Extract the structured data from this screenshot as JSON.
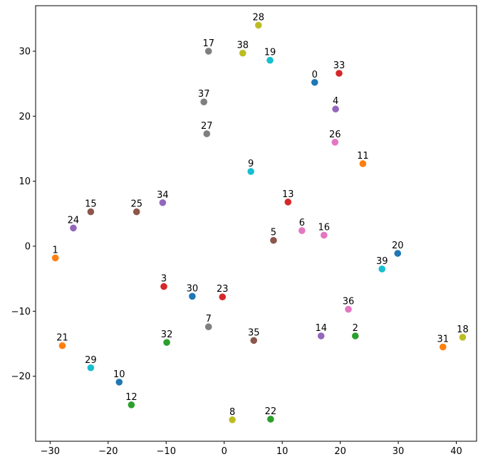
{
  "chart_data": {
    "type": "scatter",
    "title": "",
    "xlabel": "",
    "ylabel": "",
    "xlim": [
      -32.5,
      43.5
    ],
    "ylim": [
      -30.0,
      37.0
    ],
    "xticks": [
      -30,
      -20,
      -10,
      0,
      10,
      20,
      30,
      40
    ],
    "yticks": [
      -20,
      -10,
      0,
      10,
      20,
      30
    ],
    "grid": false,
    "legend": "none",
    "colors": [
      "#1f77b4",
      "#ff7f0e",
      "#2ca02c",
      "#d62728",
      "#9467bd",
      "#8c564b",
      "#e377c2",
      "#7f7f7f",
      "#bcbd22",
      "#17becf"
    ],
    "points": [
      {
        "label": "0",
        "x": 15.6,
        "y": 25.2
      },
      {
        "label": "1",
        "x": -29.1,
        "y": -1.8
      },
      {
        "label": "2",
        "x": 22.6,
        "y": -13.8
      },
      {
        "label": "3",
        "x": -10.4,
        "y": -6.2
      },
      {
        "label": "4",
        "x": 19.2,
        "y": 21.1
      },
      {
        "label": "5",
        "x": 8.5,
        "y": 0.9
      },
      {
        "label": "6",
        "x": 13.4,
        "y": 2.4
      },
      {
        "label": "7",
        "x": -2.7,
        "y": -12.4
      },
      {
        "label": "8",
        "x": 1.4,
        "y": -26.7
      },
      {
        "label": "9",
        "x": 4.6,
        "y": 11.5
      },
      {
        "label": "10",
        "x": -18.1,
        "y": -20.9
      },
      {
        "label": "11",
        "x": 23.9,
        "y": 12.7
      },
      {
        "label": "12",
        "x": -16.0,
        "y": -24.4
      },
      {
        "label": "13",
        "x": 11.0,
        "y": 6.8
      },
      {
        "label": "14",
        "x": 16.7,
        "y": -13.8
      },
      {
        "label": "15",
        "x": -23.0,
        "y": 5.3
      },
      {
        "label": "16",
        "x": 17.2,
        "y": 1.7
      },
      {
        "label": "17",
        "x": -2.7,
        "y": 30.0
      },
      {
        "label": "18",
        "x": 41.1,
        "y": -14.0
      },
      {
        "label": "19",
        "x": 7.9,
        "y": 28.6
      },
      {
        "label": "20",
        "x": 29.9,
        "y": -1.1
      },
      {
        "label": "21",
        "x": -27.9,
        "y": -15.3
      },
      {
        "label": "22",
        "x": 8.0,
        "y": -26.6
      },
      {
        "label": "23",
        "x": -0.3,
        "y": -7.8
      },
      {
        "label": "24",
        "x": -26.0,
        "y": 2.8
      },
      {
        "label": "25",
        "x": -15.1,
        "y": 5.3
      },
      {
        "label": "26",
        "x": 19.1,
        "y": 16.0
      },
      {
        "label": "27",
        "x": -3.0,
        "y": 17.3
      },
      {
        "label": "28",
        "x": 5.9,
        "y": 34.0
      },
      {
        "label": "29",
        "x": -23.0,
        "y": -18.7
      },
      {
        "label": "30",
        "x": -5.5,
        "y": -7.7
      },
      {
        "label": "31",
        "x": 37.7,
        "y": -15.5
      },
      {
        "label": "32",
        "x": -9.9,
        "y": -14.8
      },
      {
        "label": "33",
        "x": 19.8,
        "y": 26.6
      },
      {
        "label": "34",
        "x": -10.6,
        "y": 6.7
      },
      {
        "label": "35",
        "x": 5.1,
        "y": -14.5
      },
      {
        "label": "36",
        "x": 21.4,
        "y": -9.7
      },
      {
        "label": "37",
        "x": -3.5,
        "y": 22.2
      },
      {
        "label": "38",
        "x": 3.2,
        "y": 29.7
      },
      {
        "label": "39",
        "x": 27.2,
        "y": -3.5
      }
    ]
  }
}
